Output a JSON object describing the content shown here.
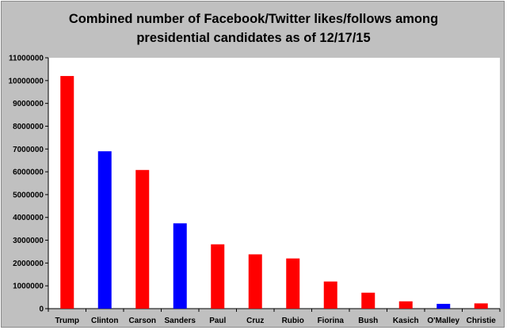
{
  "chart_data": {
    "type": "bar",
    "title_lines": [
      "Combined number of Facebook/Twitter likes/follows among",
      "presidential candidates as of 12/17/15"
    ],
    "categories": [
      "Trump",
      "Clinton",
      "Carson",
      "Sanders",
      "Paul",
      "Cruz",
      "Rubio",
      "Fiorina",
      "Bush",
      "Kasich",
      "O'Malley",
      "Christie"
    ],
    "values": [
      10200000,
      6900000,
      6080000,
      3740000,
      2820000,
      2380000,
      2200000,
      1190000,
      700000,
      320000,
      210000,
      230000
    ],
    "colors": [
      "#ff0000",
      "#0000ff",
      "#ff0000",
      "#0000ff",
      "#ff0000",
      "#ff0000",
      "#ff0000",
      "#ff0000",
      "#ff0000",
      "#ff0000",
      "#0000ff",
      "#ff0000"
    ],
    "ylim": [
      0,
      11000000
    ],
    "yticks": [
      "0",
      "1000000",
      "2000000",
      "3000000",
      "4000000",
      "5000000",
      "6000000",
      "7000000",
      "8000000",
      "9000000",
      "10000000",
      "11000000"
    ],
    "xlabel": "",
    "ylabel": "",
    "grid": false,
    "background": "#c0c0c0",
    "plot_background": "#ffffff"
  }
}
